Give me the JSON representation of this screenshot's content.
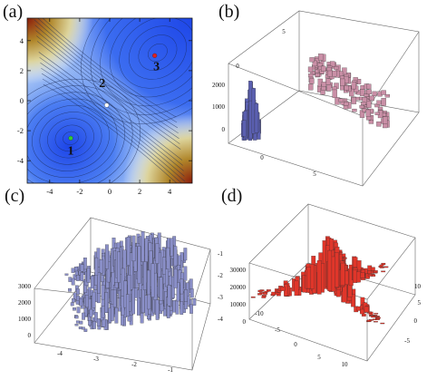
{
  "figure": {
    "panels": [
      {
        "id": "a",
        "letter": "(a)",
        "type": "contour-map",
        "x_ticks": [
          "-4",
          "-2",
          "0",
          "2",
          "4"
        ],
        "y_ticks": [
          "4",
          "2",
          "0",
          "-2",
          "-4"
        ],
        "points": [
          {
            "label": "1",
            "x": -2.6,
            "y": -2.5,
            "color": "#33cc33"
          },
          {
            "label": "2",
            "x": -0.2,
            "y": -0.3,
            "color": "#ffffff"
          },
          {
            "label": "3",
            "x": 3.0,
            "y": 3.0,
            "color": "#e02020"
          }
        ]
      },
      {
        "id": "b",
        "letter": "(b)",
        "type": "3d-histogram",
        "z_ticks": [
          "2000",
          "1000",
          "0"
        ],
        "x_ticks": [
          "0",
          "5"
        ],
        "y_ticks": [
          "5",
          "0"
        ],
        "colors": {
          "peak": "#5a5fb0",
          "cloud": "#c98fa6"
        }
      },
      {
        "id": "c",
        "letter": "(c)",
        "type": "3d-histogram",
        "z_ticks": [
          "3000",
          "2000",
          "1000",
          "0"
        ],
        "x_ticks": [
          "-4",
          "-3",
          "-2",
          "-1"
        ],
        "y_ticks": [
          "-1",
          "-2",
          "-3",
          "-4"
        ],
        "colors": {
          "bars": "#8a8fc8"
        }
      },
      {
        "id": "d",
        "letter": "(d)",
        "type": "3d-histogram",
        "z_ticks": [
          "30000",
          "20000",
          "10000",
          "0"
        ],
        "x_ticks": [
          "-10",
          "-5",
          "0",
          "5",
          "10"
        ],
        "y_ticks": [
          "10",
          "5",
          "0",
          "-5"
        ],
        "colors": {
          "bars": "#e0362a"
        }
      }
    ]
  }
}
